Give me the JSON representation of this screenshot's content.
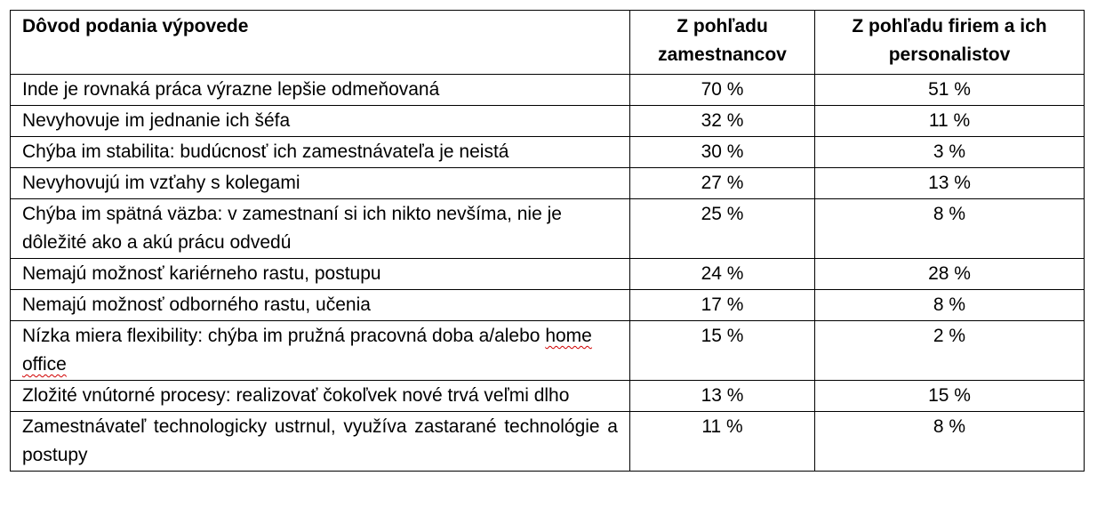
{
  "table": {
    "headers": [
      "Dôvod podania výpovede",
      "Z pohľadu zamestnancov",
      "Z pohľadu firiem a ich personalistov"
    ],
    "rows": [
      {
        "reason": "Inde je rovnaká práca výrazne lepšie odmeňovaná",
        "employees": "70 %",
        "companies": "51 %"
      },
      {
        "reason": "Nevyhovuje im jednanie ich šéfa",
        "employees": "32 %",
        "companies": "11 %"
      },
      {
        "reason": "Chýba im stabilita: budúcnosť ich zamestnávateľa je neistá",
        "employees": "30 %",
        "companies": "3 %"
      },
      {
        "reason": "Nevyhovujú im vzťahy s kolegami",
        "employees": "27 %",
        "companies": "13 %"
      },
      {
        "reason": "Chýba im spätná väzba: v zamestnaní si ich nikto nevšíma, nie je dôležité ako a akú prácu odvedú",
        "employees": "25 %",
        "companies": "8 %"
      },
      {
        "reason": "Nemajú možnosť kariérneho rastu, postupu",
        "employees": "24 %",
        "companies": "28 %"
      },
      {
        "reason": "Nemajú možnosť odborného rastu, učenia",
        "employees": "17 %",
        "companies": "8 %"
      },
      {
        "reason_main": "Nízka miera flexibility: chýba im pružná pracovná doba a/alebo",
        "reason_tail": "home office",
        "employees": "15 %",
        "companies": "2 %"
      },
      {
        "reason": "Zložité vnútorné procesy: realizovať čokoľvek nové trvá veľmi dlho",
        "employees": "13 %",
        "companies": "15 %"
      },
      {
        "reason": "Zamestnávateľ technologicky ustrnul, využíva zastarané technológie a postupy",
        "employees": "11 %",
        "companies": "8 %"
      }
    ]
  }
}
